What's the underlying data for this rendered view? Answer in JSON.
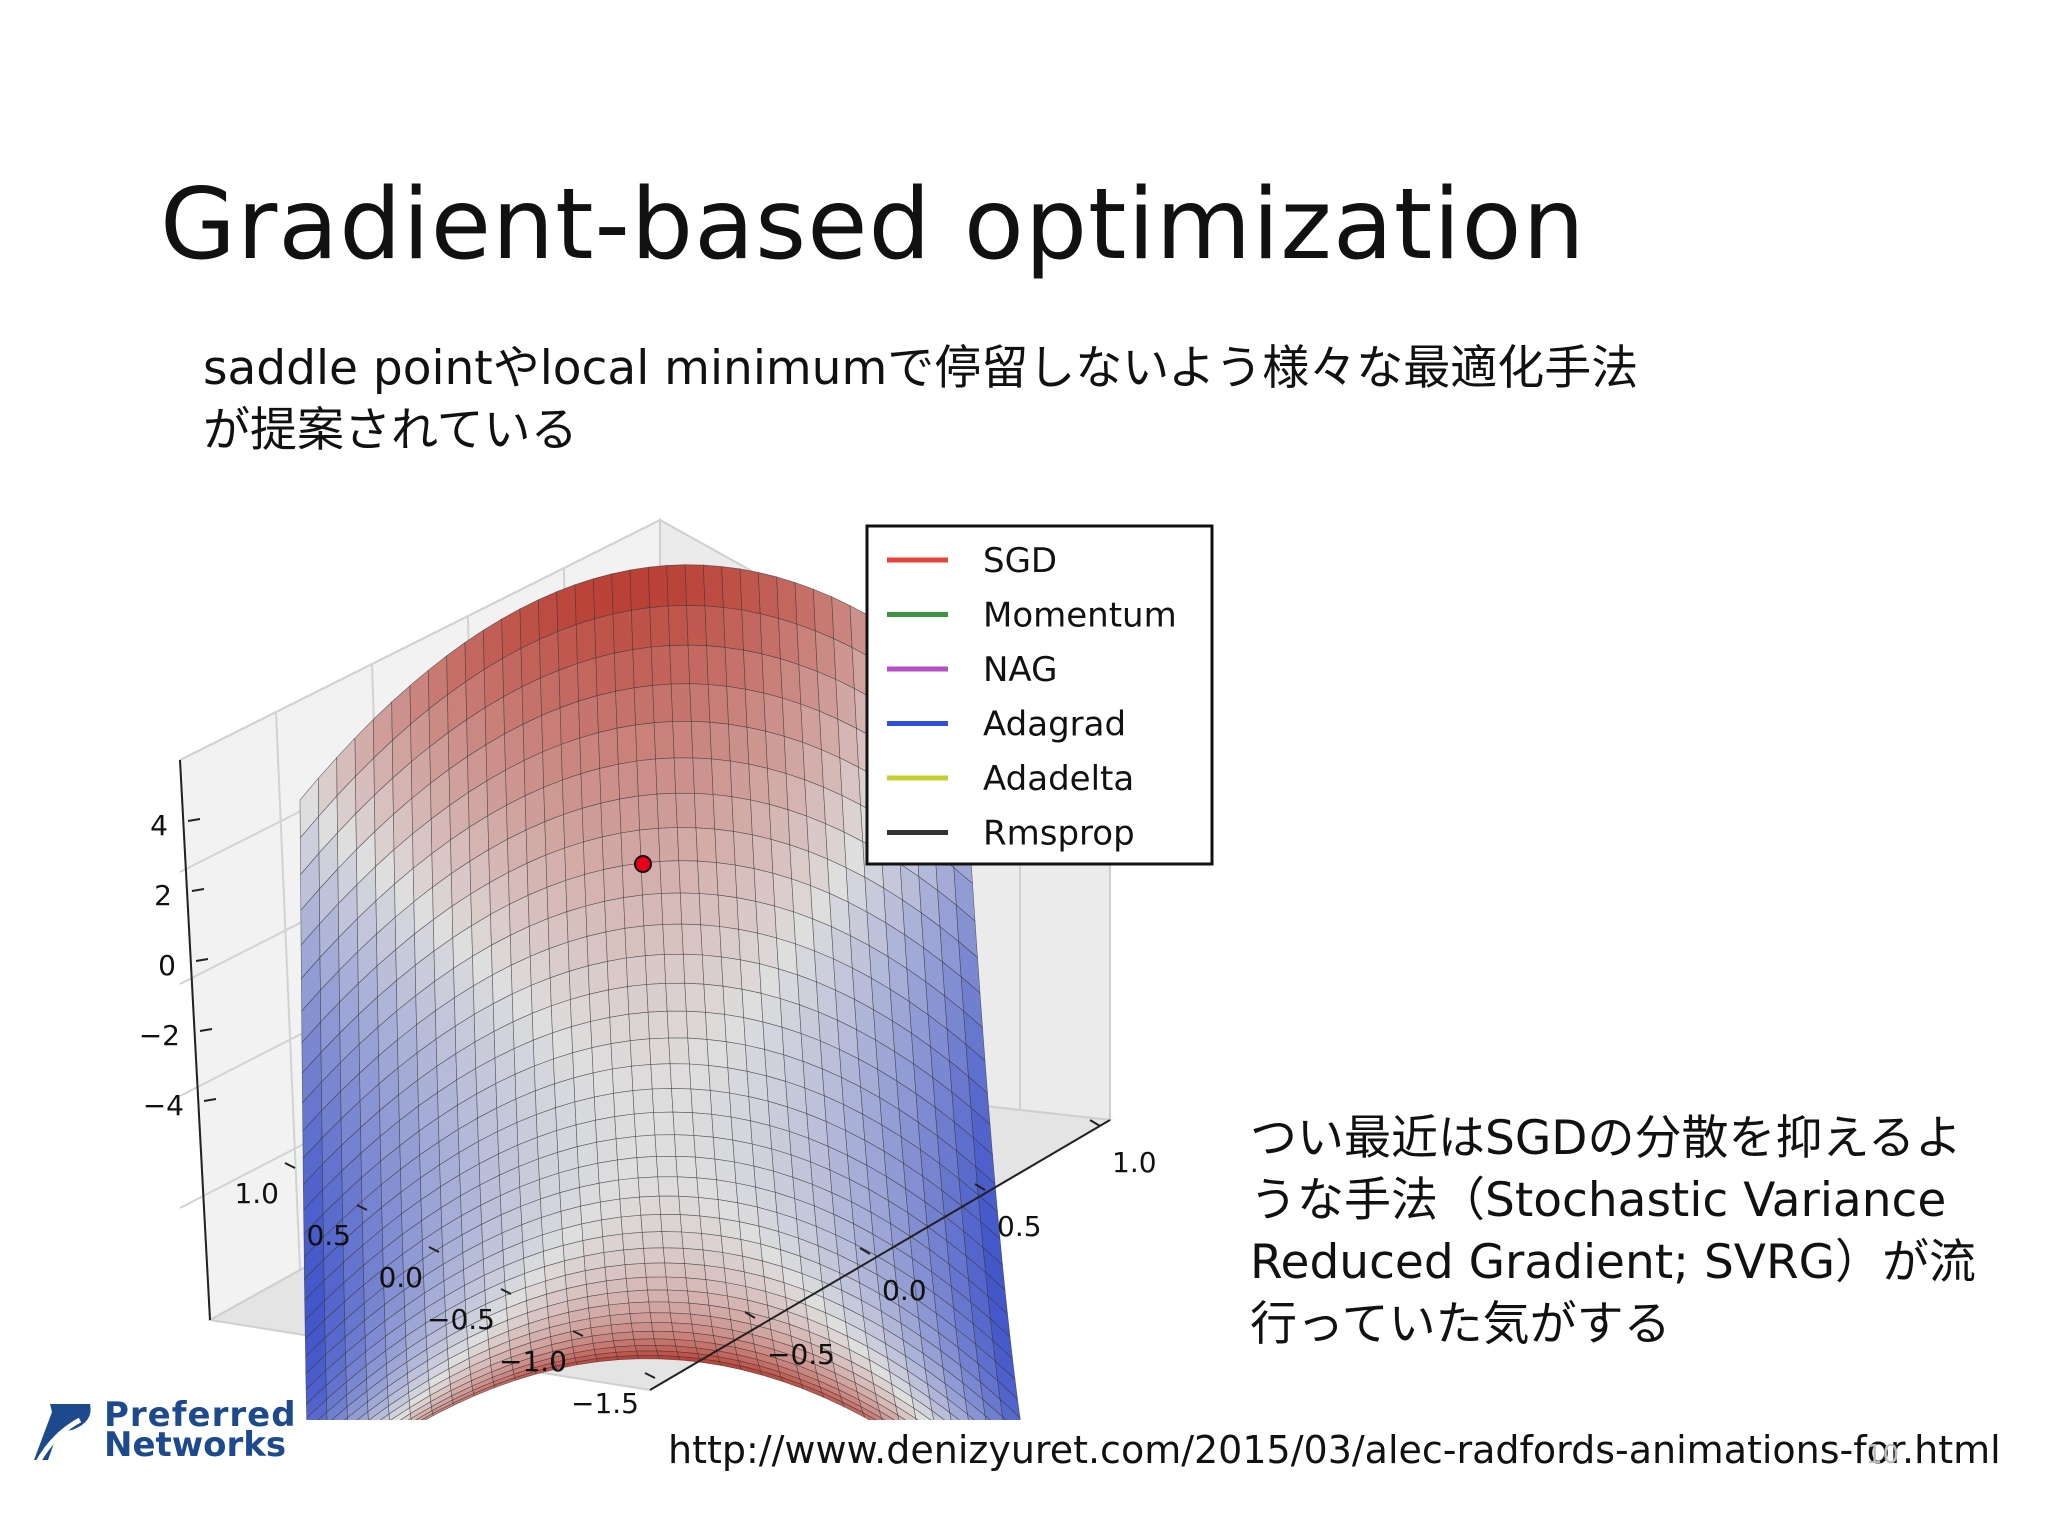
{
  "slide": {
    "title": "Gradient-based optimization",
    "intro_line1": "saddle pointやlocal minimumで停留しないよう様々な最適化手法",
    "intro_line2": "が提案されている",
    "note_line1": "つい最近はSGDの分散を抑えるよ",
    "note_line2": "うな手法（Stochastic Variance",
    "note_line3": "Reduced Gradient; SVRG）が流",
    "note_line4": "行っていた気がする",
    "source_url": "http://www.denizyuret.com/2015/03/alec-radfords-animations-for.html",
    "page_number": "10"
  },
  "logo": {
    "line1": "Preferred",
    "line2": "Networks",
    "color": "#1d4a8c"
  },
  "figure": {
    "legend": [
      {
        "label": "SGD",
        "color": "#e8423b"
      },
      {
        "label": "Momentum",
        "color": "#3a9440"
      },
      {
        "label": "NAG",
        "color": "#b74fc4"
      },
      {
        "label": "Adagrad",
        "color": "#2f4fe0"
      },
      {
        "label": "Adadelta",
        "color": "#c6cf2e"
      },
      {
        "label": "Rmsprop",
        "color": "#333333"
      }
    ],
    "z_ticks": [
      "4",
      "2",
      "0",
      "−2",
      "−4"
    ],
    "y_ticks": [
      "1.0",
      "0.5",
      "0.0",
      "−0.5",
      "−1.0",
      "−1.5"
    ],
    "x_ticks": [
      "1.0",
      "0.5",
      "0.0",
      "−0.5"
    ],
    "surface_colors": {
      "high": "#b8382c",
      "mid": "#dcdcdc",
      "low": "#3a4fc8"
    },
    "current_point_color": "#e8001a"
  }
}
